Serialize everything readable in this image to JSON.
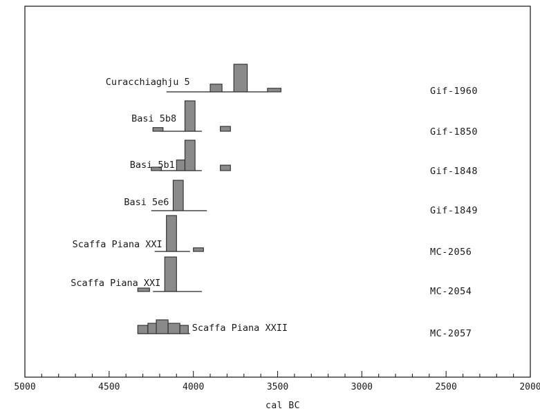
{
  "chart_data": {
    "type": "calibrated-radiocarbon-distribution",
    "xlabel": "cal BC",
    "xlim": [
      5000,
      2000
    ],
    "x_reversed": true,
    "x_ticks": [
      5000,
      4500,
      4000,
      3500,
      3000,
      2500,
      2000
    ],
    "x_tick_labels": [
      "5000",
      "4500",
      "4000",
      "3500",
      "3000",
      "2500",
      "2000"
    ],
    "minor_tick_step": 100,
    "samples": [
      {
        "site": "Curacchiaghju 5",
        "lab_code": "Gif-1960",
        "label_side": "left",
        "range": [
          4160,
          3560
        ],
        "blocks": [
          {
            "from": 3900,
            "to": 3830,
            "rel_height": 0.28
          },
          {
            "from": 3760,
            "to": 3680,
            "rel_height": 1.0
          },
          {
            "from": 3560,
            "to": 3480,
            "rel_height": 0.13
          }
        ]
      },
      {
        "site": "Basi 5b8",
        "lab_code": "Gif-1850",
        "label_side": "left",
        "range": [
          4200,
          3950
        ],
        "blocks": [
          {
            "from": 4240,
            "to": 4180,
            "rel_height": 0.12
          },
          {
            "from": 4050,
            "to": 3990,
            "rel_height": 1.0
          },
          {
            "from": 3840,
            "to": 3780,
            "rel_height": 0.16
          }
        ]
      },
      {
        "site": "Basi 5b1",
        "lab_code": "Gif-1848",
        "label_side": "left",
        "range": [
          4200,
          3950
        ],
        "blocks": [
          {
            "from": 4250,
            "to": 4190,
            "rel_height": 0.1
          },
          {
            "from": 4100,
            "to": 4050,
            "rel_height": 0.35
          },
          {
            "from": 4050,
            "to": 3990,
            "rel_height": 1.0
          },
          {
            "from": 3840,
            "to": 3780,
            "rel_height": 0.18
          }
        ]
      },
      {
        "site": "Basi 5e6",
        "lab_code": "Gif-1849",
        "label_side": "left",
        "range": [
          4250,
          3920
        ],
        "blocks": [
          {
            "from": 4120,
            "to": 4060,
            "rel_height": 1.0
          }
        ]
      },
      {
        "site": "Scaffa Piana XXI",
        "lab_code": "MC-2056",
        "label_side": "left",
        "range": [
          4230,
          4020
        ],
        "blocks": [
          {
            "from": 4160,
            "to": 4100,
            "rel_height": 1.0
          },
          {
            "from": 4000,
            "to": 3940,
            "rel_height": 0.1
          }
        ]
      },
      {
        "site": "Scaffa Piana XXI",
        "lab_code": "MC-2054",
        "label_side": "left",
        "range": [
          4240,
          3950
        ],
        "blocks": [
          {
            "from": 4330,
            "to": 4260,
            "rel_height": 0.05
          },
          {
            "from": 4170,
            "to": 4100,
            "rel_height": 1.0
          }
        ]
      },
      {
        "site": "Scaffa Piana XXII",
        "lab_code": "MC-2057",
        "label_side": "right",
        "range": [
          4330,
          4020
        ],
        "blocks": [
          {
            "from": 4330,
            "to": 4270,
            "rel_height": 0.6
          },
          {
            "from": 4270,
            "to": 4220,
            "rel_height": 0.75
          },
          {
            "from": 4220,
            "to": 4150,
            "rel_height": 1.0
          },
          {
            "from": 4150,
            "to": 4080,
            "rel_height": 0.75
          },
          {
            "from": 4080,
            "to": 4030,
            "rel_height": 0.6
          }
        ]
      }
    ]
  }
}
